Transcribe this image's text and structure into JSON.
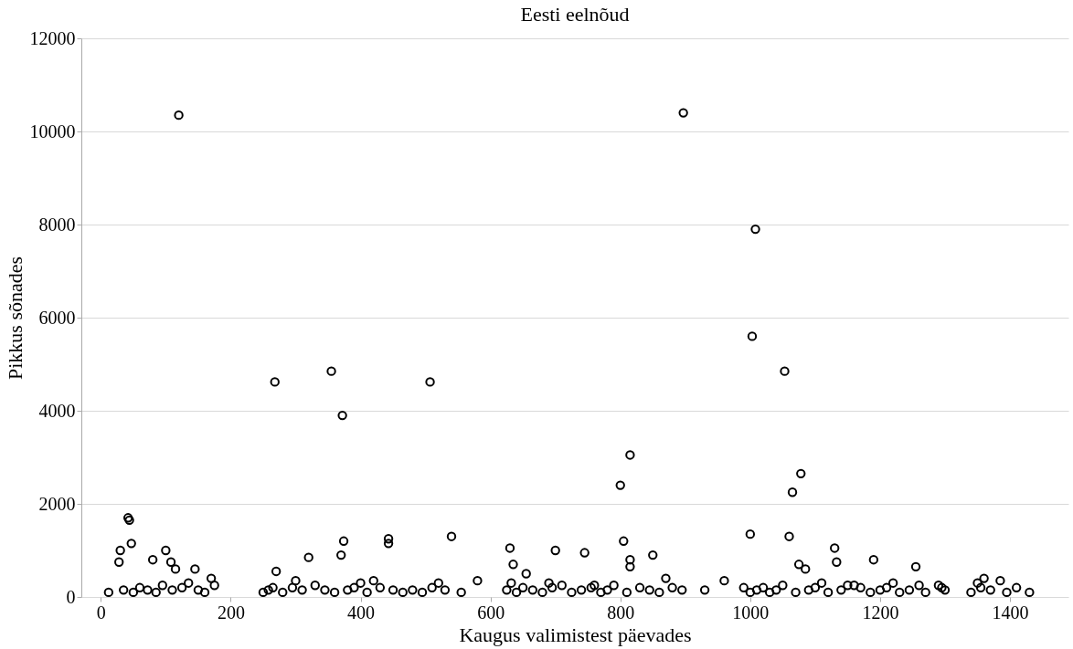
{
  "chart_data": {
    "type": "scatter",
    "title": "Eesti eelnõud",
    "xlabel": "Kaugus valimistest päevades",
    "ylabel": "Pikkus sõnades",
    "xlim": [
      -30,
      1490
    ],
    "ylim": [
      0,
      12000
    ],
    "xticks": [
      0,
      200,
      400,
      600,
      800,
      1000,
      1200,
      1400
    ],
    "yticks": [
      0,
      2000,
      4000,
      6000,
      8000,
      10000,
      12000
    ],
    "grid": "y",
    "marker": "circle",
    "legend": false,
    "series": [
      {
        "color": "#000000",
        "x": [
          120,
          897,
          1008,
          1003,
          1053,
          268,
          355,
          372,
          507,
          800,
          815,
          1078,
          1065,
          42,
          44,
          30,
          28,
          47,
          374,
          370,
          320,
          443,
          443,
          540,
          1000,
          1060,
          805,
          630,
          700,
          745,
          850,
          1130,
          1133,
          1190,
          1255,
          815,
          815,
          1075,
          1085,
          100,
          108,
          80,
          115,
          145,
          170,
          635,
          655,
          960,
          930,
          270,
          300,
          400,
          420,
          520,
          580,
          690,
          760,
          870,
          1110,
          1160,
          1220,
          1290,
          1350,
          1360,
          1385,
          12,
          35,
          50,
          60,
          72,
          85,
          95,
          110,
          125,
          135,
          150,
          160,
          175,
          250,
          258,
          265,
          280,
          295,
          310,
          330,
          345,
          360,
          380,
          390,
          410,
          430,
          450,
          465,
          480,
          495,
          510,
          530,
          555,
          625,
          632,
          640,
          650,
          665,
          680,
          695,
          710,
          725,
          740,
          755,
          770,
          780,
          790,
          810,
          830,
          845,
          860,
          880,
          895,
          990,
          1000,
          1010,
          1020,
          1030,
          1040,
          1050,
          1070,
          1090,
          1100,
          1120,
          1140,
          1150,
          1170,
          1185,
          1200,
          1210,
          1230,
          1245,
          1260,
          1270,
          1295,
          1300,
          1340,
          1355,
          1370,
          1395,
          1410,
          1430
        ],
        "values": [
          10350,
          10400,
          7900,
          5600,
          4850,
          4620,
          4850,
          3900,
          4620,
          2400,
          3050,
          2650,
          2250,
          1700,
          1650,
          1000,
          750,
          1150,
          1200,
          900,
          850,
          1250,
          1150,
          1300,
          1350,
          1300,
          1200,
          1050,
          1000,
          950,
          900,
          1050,
          750,
          800,
          650,
          800,
          650,
          700,
          600,
          1000,
          750,
          800,
          600,
          600,
          400,
          700,
          500,
          350,
          150,
          550,
          350,
          300,
          350,
          300,
          350,
          300,
          250,
          400,
          300,
          250,
          300,
          250,
          300,
          400,
          350,
          100,
          150,
          100,
          200,
          150,
          100,
          250,
          150,
          200,
          300,
          150,
          100,
          250,
          100,
          150,
          200,
          100,
          200,
          150,
          250,
          150,
          100,
          150,
          200,
          100,
          200,
          150,
          100,
          150,
          100,
          200,
          150,
          100,
          150,
          300,
          100,
          200,
          150,
          100,
          200,
          250,
          100,
          150,
          200,
          100,
          150,
          250,
          100,
          200,
          150,
          100,
          200,
          150,
          200,
          100,
          150,
          200,
          100,
          150,
          250,
          100,
          150,
          200,
          100,
          150,
          250,
          200,
          100,
          150,
          200,
          100,
          150,
          250,
          100,
          200,
          150,
          100,
          200,
          150,
          100,
          200,
          100
        ]
      }
    ]
  }
}
